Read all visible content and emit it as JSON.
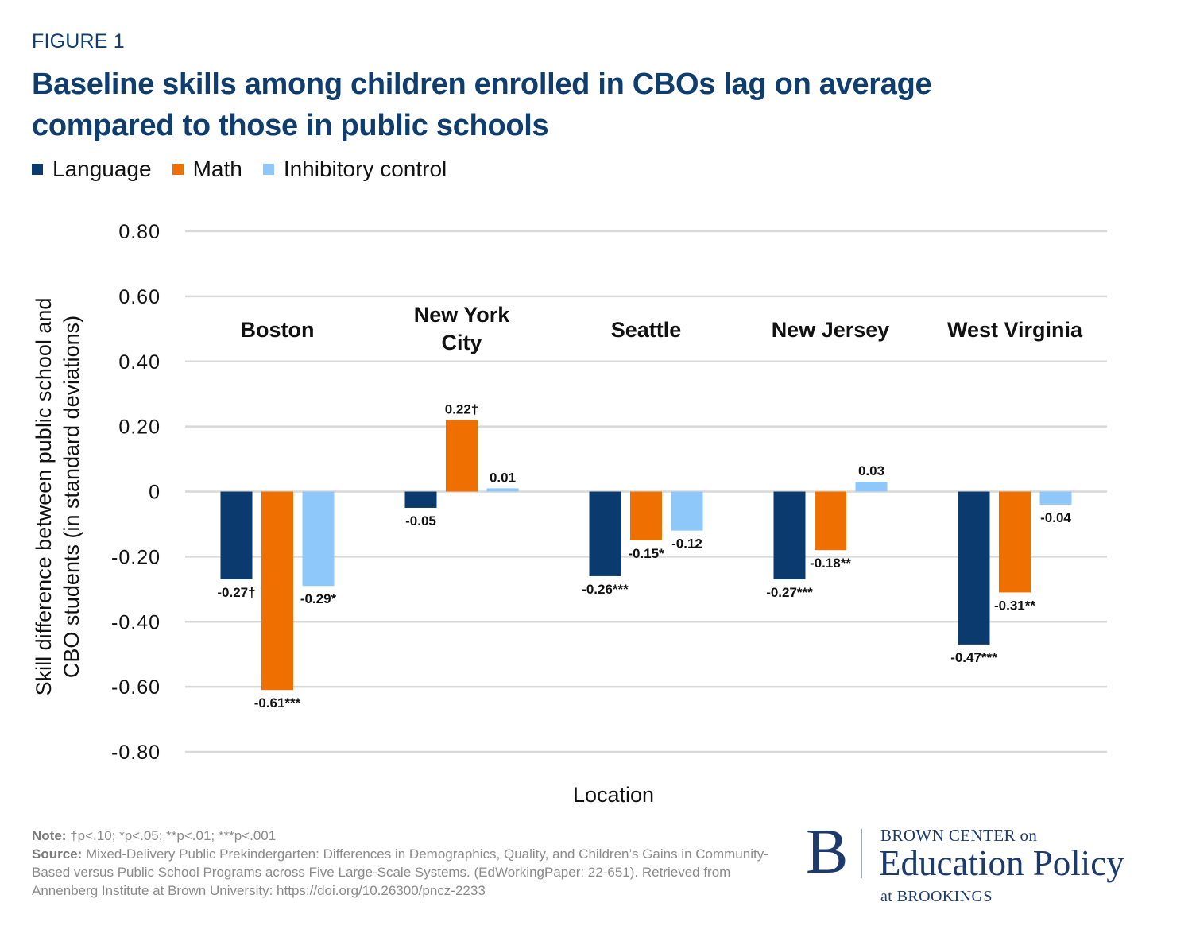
{
  "figure_label": "FIGURE 1",
  "title_line1": "Baseline skills among children enrolled in CBOs lag on average",
  "title_line2": "compared to those in public schools",
  "note_label": "Note:",
  "note_text": " †p<.10; *p<.05; **p<.01; ***p<.001",
  "source_label": "Source:",
  "source_text": " Mixed-Delivery Public Prekindergarten: Differences in Demographics, Quality, and Children’s Gains in Community-Based versus Public School Programs across Five Large-Scale Systems. (EdWorkingPaper: 22-651). Retrieved from Annenberg Institute at Brown University: https://doi.org/10.26300/pncz-2233",
  "logo": {
    "mark": "B",
    "top_line": "BROWN CENTER on",
    "main_line": "Education Policy",
    "bottom_line": "at BROOKINGS"
  },
  "chart_data": {
    "type": "bar",
    "title": "Baseline skills among children enrolled in CBOs lag on average compared to those in public schools",
    "xlabel": "Location",
    "ylabel_lines": [
      "Skill difference between public school and",
      "CBO students (in standard deviations)"
    ],
    "ylabel": "Skill difference between public school and CBO students (in standard deviations)",
    "ylim": [
      -0.8,
      0.8
    ],
    "yticks": [
      0.8,
      0.6,
      0.4,
      0.2,
      0,
      -0.2,
      -0.4,
      -0.6,
      -0.8
    ],
    "ytick_labels": [
      "0.80",
      "0.60",
      "0.40",
      "0.20",
      "0",
      "-0.20",
      "-0.40",
      "-0.60",
      "-0.80"
    ],
    "grid": true,
    "legend_position": "top-left",
    "categories": [
      "Boston",
      "New York City",
      "Seattle",
      "New Jersey",
      "West Virginia"
    ],
    "category_label_lines": [
      [
        "Boston"
      ],
      [
        "New York",
        "City"
      ],
      [
        "Seattle"
      ],
      [
        "New Jersey"
      ],
      [
        "West Virginia"
      ]
    ],
    "series": [
      {
        "name": "Language",
        "color": "#0b3a6e",
        "values": [
          -0.27,
          -0.05,
          -0.26,
          -0.27,
          -0.47
        ],
        "labels": [
          "-0.27†",
          "-0.05",
          "-0.26***",
          "-0.27***",
          "-0.47***"
        ]
      },
      {
        "name": "Math",
        "color": "#ef7000",
        "values": [
          -0.61,
          0.22,
          -0.15,
          -0.18,
          -0.31
        ],
        "labels": [
          "-0.61***",
          "0.22†",
          "-0.15*",
          "-0.18**",
          "-0.31**"
        ]
      },
      {
        "name": "Inhibitory control",
        "color": "#8ec8fb",
        "values": [
          -0.29,
          0.01,
          -0.12,
          0.03,
          -0.04
        ],
        "labels": [
          "-0.29*",
          "0.01",
          "-0.12",
          "0.03",
          "-0.04"
        ]
      }
    ]
  }
}
